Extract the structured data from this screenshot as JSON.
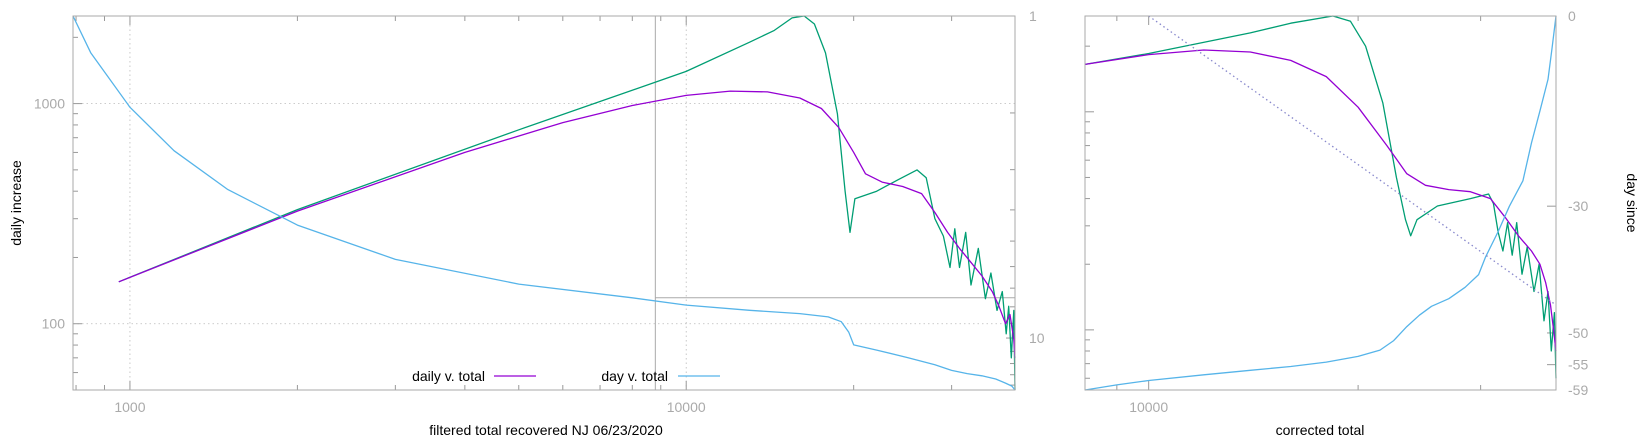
{
  "colors": {
    "daily": "#9400d3",
    "raw": "#009e73",
    "day": "#56b4e9",
    "trend": "#8888cc",
    "frame": "#aaaaaa"
  },
  "chart_data": [
    {
      "id": "left",
      "type": "line",
      "xlabel": "filtered total recovered NJ 06/23/2020",
      "ylabel": "daily increase",
      "xscale": "log",
      "yscale": "log",
      "xlim": [
        790,
        39000
      ],
      "ylim": [
        50,
        2500
      ],
      "y2scale": "log",
      "y2lim": [
        1,
        14.5
      ],
      "y2_reversed": true,
      "x_ticks": [
        {
          "value": 1000,
          "label": "1000"
        },
        {
          "value": 10000,
          "label": "10000"
        }
      ],
      "y_ticks": [
        {
          "value": 100,
          "label": "100"
        },
        {
          "value": 1000,
          "label": "1000"
        }
      ],
      "y2_ticks": [
        {
          "value": 1,
          "label": "1"
        },
        {
          "value": 10,
          "label": "10"
        }
      ],
      "grid": true,
      "inset_box": {
        "x_from": 8800,
        "y2_at": 7.5
      },
      "legend": [
        {
          "label": "daily v. total",
          "color_key": "daily"
        },
        {
          "label": "day v. total",
          "color_key": "day"
        }
      ],
      "legend_position": "bottom-center",
      "series": [
        {
          "key": "raw",
          "axis": "y",
          "points": [
            [
              955,
              155
            ],
            [
              2000,
              330
            ],
            [
              5000,
              760
            ],
            [
              10000,
              1400
            ],
            [
              13000,
              1900
            ],
            [
              14400,
              2150
            ],
            [
              15500,
              2450
            ],
            [
              16300,
              2500
            ],
            [
              17000,
              2300
            ],
            [
              17800,
              1700
            ],
            [
              18700,
              900
            ],
            [
              19300,
              400
            ],
            [
              19700,
              260
            ],
            [
              20100,
              370
            ],
            [
              22000,
              400
            ],
            [
              24000,
              450
            ],
            [
              26000,
              500
            ],
            [
              27000,
              460
            ],
            [
              28000,
              300
            ],
            [
              29000,
              250
            ],
            [
              29800,
              180
            ],
            [
              30400,
              270
            ],
            [
              31000,
              180
            ],
            [
              31800,
              260
            ],
            [
              32500,
              150
            ],
            [
              33500,
              220
            ],
            [
              34500,
              130
            ],
            [
              35300,
              170
            ],
            [
              36200,
              115
            ],
            [
              37000,
              140
            ],
            [
              37600,
              90
            ],
            [
              38000,
              120
            ],
            [
              38400,
              70
            ],
            [
              38800,
              115
            ],
            [
              39000,
              50
            ]
          ]
        },
        {
          "key": "daily",
          "axis": "y",
          "points": [
            [
              955,
              155
            ],
            [
              2000,
              325
            ],
            [
              4000,
              600
            ],
            [
              6000,
              820
            ],
            [
              8000,
              980
            ],
            [
              10000,
              1090
            ],
            [
              12000,
              1140
            ],
            [
              14000,
              1130
            ],
            [
              16000,
              1060
            ],
            [
              17500,
              950
            ],
            [
              18800,
              780
            ],
            [
              20000,
              600
            ],
            [
              21000,
              480
            ],
            [
              22500,
              440
            ],
            [
              24500,
              420
            ],
            [
              26500,
              390
            ],
            [
              28000,
              320
            ],
            [
              29500,
              260
            ],
            [
              31000,
              220
            ],
            [
              32500,
              190
            ],
            [
              34000,
              165
            ],
            [
              35500,
              140
            ],
            [
              36500,
              120
            ],
            [
              37500,
              100
            ],
            [
              38200,
              110
            ],
            [
              38800,
              85
            ],
            [
              39000,
              70
            ]
          ]
        },
        {
          "key": "day",
          "axis": "y2",
          "points": [
            [
              790,
              1
            ],
            [
              850,
              1.3
            ],
            [
              1000,
              1.92
            ],
            [
              1200,
              2.62
            ],
            [
              1500,
              3.46
            ],
            [
              2000,
              4.46
            ],
            [
              3000,
              5.7
            ],
            [
              5000,
              6.8
            ],
            [
              8000,
              7.5
            ],
            [
              10000,
              7.9
            ],
            [
              13000,
              8.2
            ],
            [
              16000,
              8.4
            ],
            [
              18000,
              8.6
            ],
            [
              19000,
              8.9
            ],
            [
              19600,
              9.6
            ],
            [
              20000,
              10.5
            ],
            [
              22000,
              10.9
            ],
            [
              25000,
              11.5
            ],
            [
              28000,
              12.1
            ],
            [
              30000,
              12.6
            ],
            [
              32000,
              12.9
            ],
            [
              34000,
              13.1
            ],
            [
              36000,
              13.4
            ],
            [
              37500,
              13.8
            ],
            [
              38500,
              14.1
            ],
            [
              39000,
              14.5
            ]
          ]
        }
      ]
    },
    {
      "id": "right",
      "type": "line",
      "xlabel": "corrected total",
      "y2label": "day since",
      "xscale": "log",
      "yscale": "log",
      "xlim": [
        8100,
        38500
      ],
      "ylim": [
        53,
        2750
      ],
      "y2lim": [
        0,
        -59
      ],
      "y2_reversed": true,
      "x_ticks": [
        {
          "value": 10000,
          "label": "10000"
        }
      ],
      "y2_ticks": [
        {
          "value": 0,
          "label": "0"
        },
        {
          "value": -30,
          "label": "-30"
        },
        {
          "value": -50,
          "label": "-50"
        },
        {
          "value": -55,
          "label": "-55"
        },
        {
          "value": -59,
          "label": "-59"
        }
      ],
      "grid": false,
      "series": [
        {
          "key": "raw",
          "axis": "y",
          "points": [
            [
              8100,
              1650
            ],
            [
              10000,
              1850
            ],
            [
              14000,
              2300
            ],
            [
              16000,
              2550
            ],
            [
              18400,
              2750
            ],
            [
              19500,
              2600
            ],
            [
              20500,
              2000
            ],
            [
              21700,
              1100
            ],
            [
              22700,
              500
            ],
            [
              23400,
              320
            ],
            [
              23800,
              270
            ],
            [
              24300,
              320
            ],
            [
              26000,
              370
            ],
            [
              29000,
              400
            ],
            [
              30800,
              420
            ],
            [
              31300,
              380
            ],
            [
              31800,
              280
            ],
            [
              32300,
              230
            ],
            [
              32800,
              310
            ],
            [
              33300,
              220
            ],
            [
              33800,
              310
            ],
            [
              34400,
              180
            ],
            [
              35000,
              240
            ],
            [
              35800,
              150
            ],
            [
              36400,
              200
            ],
            [
              37000,
              110
            ],
            [
              37500,
              150
            ],
            [
              37900,
              80
            ],
            [
              38300,
              120
            ],
            [
              38500,
              60
            ]
          ]
        },
        {
          "key": "daily",
          "axis": "y",
          "points": [
            [
              8100,
              1650
            ],
            [
              10000,
              1830
            ],
            [
              12000,
              1920
            ],
            [
              14000,
              1880
            ],
            [
              16000,
              1720
            ],
            [
              18000,
              1450
            ],
            [
              20000,
              1050
            ],
            [
              22000,
              700
            ],
            [
              23500,
              520
            ],
            [
              25000,
              460
            ],
            [
              27000,
              440
            ],
            [
              29000,
              430
            ],
            [
              31000,
              400
            ],
            [
              32500,
              330
            ],
            [
              34000,
              270
            ],
            [
              35500,
              230
            ],
            [
              36500,
              200
            ],
            [
              37200,
              165
            ],
            [
              37800,
              130
            ],
            [
              38200,
              100
            ],
            [
              38500,
              80
            ]
          ]
        },
        {
          "key": "day",
          "axis": "y2",
          "points": [
            [
              8100,
              -59
            ],
            [
              9000,
              -58.2
            ],
            [
              10000,
              -57.5
            ],
            [
              12000,
              -56.6
            ],
            [
              14000,
              -55.9
            ],
            [
              16000,
              -55.3
            ],
            [
              18000,
              -54.6
            ],
            [
              20000,
              -53.7
            ],
            [
              21500,
              -52.7
            ],
            [
              22500,
              -51.2
            ],
            [
              23500,
              -49
            ],
            [
              24500,
              -47.2
            ],
            [
              25500,
              -45.8
            ],
            [
              27000,
              -44.6
            ],
            [
              28500,
              -42.8
            ],
            [
              29800,
              -40.8
            ],
            [
              30500,
              -38
            ],
            [
              31800,
              -34
            ],
            [
              33000,
              -30
            ],
            [
              34500,
              -26
            ],
            [
              35500,
              -20
            ],
            [
              36500,
              -15
            ],
            [
              37500,
              -10
            ],
            [
              38000,
              -5
            ],
            [
              38500,
              0
            ]
          ]
        },
        {
          "key": "trend",
          "axis": "y",
          "dashed": true,
          "points": [
            [
              10000,
              2750
            ],
            [
              38500,
              130
            ]
          ]
        }
      ]
    }
  ]
}
